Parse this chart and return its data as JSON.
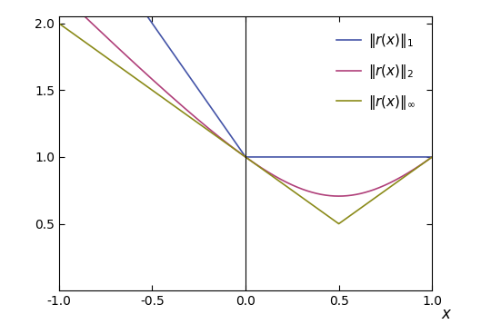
{
  "x_min": -1.0,
  "x_max": 1.0,
  "y_min": 0.0,
  "y_max": 2.05,
  "color_l1": "#4555a8",
  "color_l2": "#b0407a",
  "color_linf": "#8b8b1a",
  "legend_labels": [
    "$\\|r(x)\\|_1$",
    "$\\|r(x)\\|_2$",
    "$\\|r(x)\\|_\\infty$"
  ],
  "xlabel": "$x$",
  "yticks": [
    0.5,
    1.0,
    1.5,
    2.0
  ],
  "xticks": [
    -1.0,
    -0.5,
    0.0,
    0.5,
    1.0
  ],
  "n_points": 2000,
  "linewidth": 1.2,
  "background_color": "#ffffff",
  "fig_width": 5.4,
  "fig_height": 3.68,
  "dpi": 100
}
